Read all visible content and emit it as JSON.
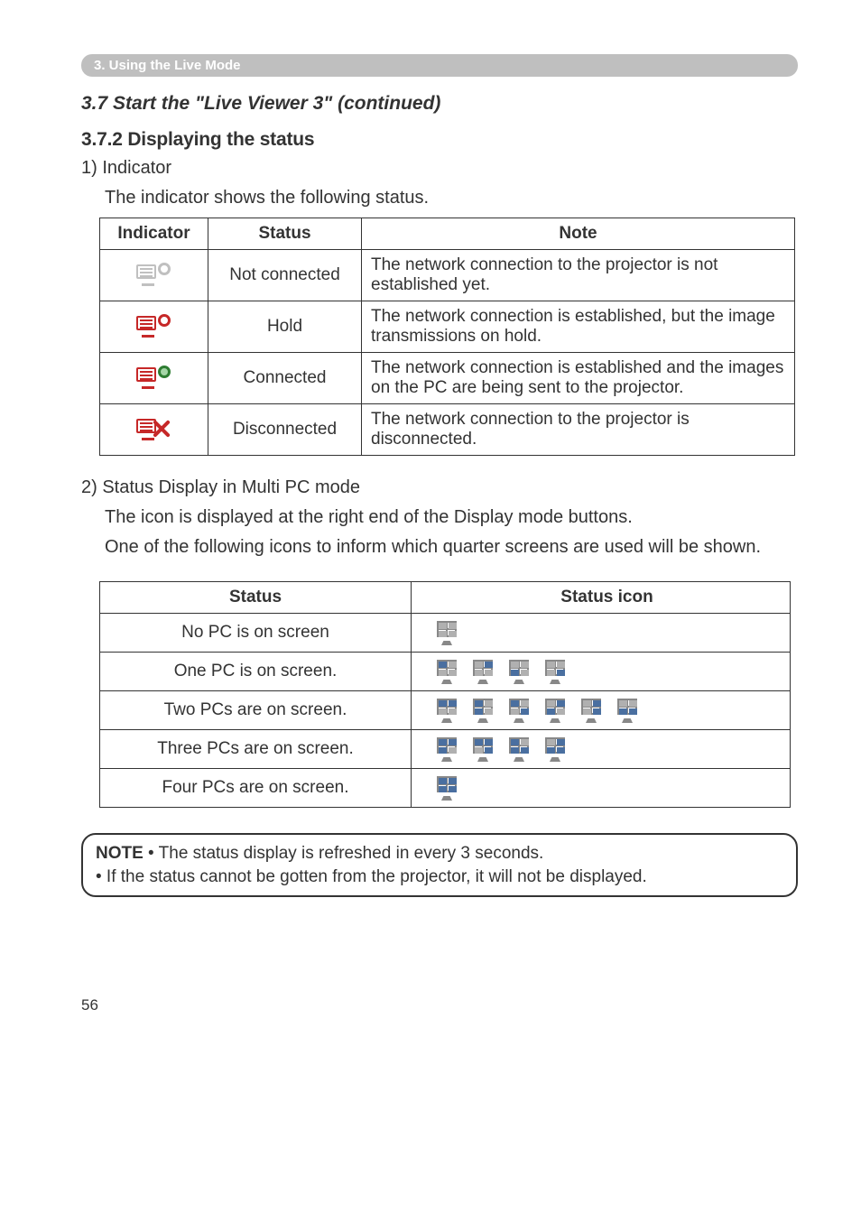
{
  "section_bar": "3. Using the Live Mode",
  "subtitle": "3.7 Start the \"Live Viewer 3\" (continued)",
  "subsection": "3.7.2 Displaying the status",
  "indicator_intro_1": "1) Indicator",
  "indicator_intro_2": "The indicator shows the following status.",
  "table1": {
    "headers": {
      "indicator": "Indicator",
      "status": "Status",
      "note": "Note"
    },
    "rows": [
      {
        "status": "Not connected",
        "note": "The network connection to the projector is not established yet.",
        "color": "#c0c0c0"
      },
      {
        "status": "Hold",
        "note": "The network connection is established, but the image transmissions on hold.",
        "color": "#c62828"
      },
      {
        "status": "Connected",
        "note": "The network connection is established and the images on the PC are being sent to the projector.",
        "color": "#c62828"
      },
      {
        "status": "Disconnected",
        "note": "The network connection to the projector is disconnected.",
        "color": "#c62828"
      }
    ]
  },
  "multi_intro_1": "2) Status Display in Multi PC mode",
  "multi_intro_2": "The icon is displayed at the right end of the Display mode buttons.",
  "multi_intro_3": "One of the following icons to inform which quarter screens are used will be shown.",
  "table2": {
    "headers": {
      "status": "Status",
      "icon": "Status icon"
    },
    "rows": [
      {
        "status": "No PC is on screen",
        "icons": [
          [
            false,
            false,
            false,
            false
          ]
        ]
      },
      {
        "status": "One PC is on screen.",
        "icons": [
          [
            true,
            false,
            false,
            false
          ],
          [
            false,
            true,
            false,
            false
          ],
          [
            false,
            false,
            true,
            false
          ],
          [
            false,
            false,
            false,
            true
          ]
        ]
      },
      {
        "status": "Two PCs are on screen.",
        "icons": [
          [
            true,
            true,
            false,
            false
          ],
          [
            true,
            false,
            true,
            false
          ],
          [
            true,
            false,
            false,
            true
          ],
          [
            false,
            true,
            true,
            false
          ],
          [
            false,
            true,
            false,
            true
          ],
          [
            false,
            false,
            true,
            true
          ]
        ]
      },
      {
        "status": "Three PCs are on screen.",
        "icons": [
          [
            true,
            true,
            true,
            false
          ],
          [
            true,
            true,
            false,
            true
          ],
          [
            true,
            false,
            true,
            true
          ],
          [
            false,
            true,
            true,
            true
          ]
        ]
      },
      {
        "status": "Four PCs are on screen.",
        "icons": [
          [
            true,
            true,
            true,
            true
          ]
        ]
      }
    ]
  },
  "note_label": "NOTE",
  "note_line_1": " • The status display is refreshed in every 3 seconds.",
  "note_line_2": "• If the status cannot be gotten from the projector, it will not be displayed.",
  "page_number": "56",
  "quad_active_color": "#4a6fa0",
  "quad_inactive_color": "#b0b0b0"
}
